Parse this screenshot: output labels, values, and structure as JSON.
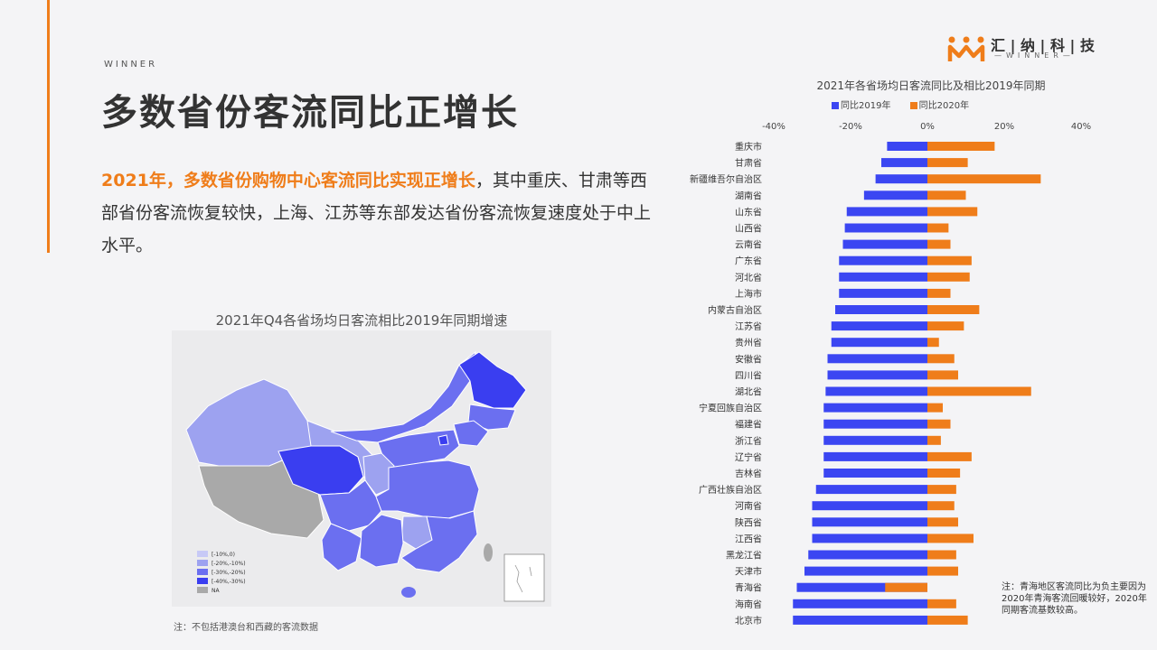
{
  "header": {
    "brand_label": "WINNER",
    "title": "多数省份客流同比正增长",
    "logo_name": "汇 | 纳 | 科 | 技",
    "logo_sub": "—WINNER—"
  },
  "body": {
    "highlight": "2021年，多数省份购物中心客流同比实现正增长",
    "rest": "，其中重庆、甘肃等西部省份客流恢复较快，上海、江苏等东部发达省份客流恢复速度处于中上水平。"
  },
  "map": {
    "title": "2021年Q4各省场均日客流相比2019年同期增速",
    "legend": [
      "[-10%,0)",
      "[-20%,-10%)",
      "[-30%,-20%)",
      "[-40%,-30%)",
      "NA"
    ],
    "colors": [
      "#c7c9f6",
      "#9da2f0",
      "#6b6ff0",
      "#3a3ef0",
      "#a9a9a9"
    ],
    "note": "注：不包括港澳台和西藏的客流数据"
  },
  "chart_data": {
    "type": "bar",
    "orientation": "horizontal",
    "title": "2021年各省场均日客流同比及相比2019年同期",
    "xlim": [
      -40,
      40
    ],
    "xticks": [
      "-40%",
      "-20%",
      "0%",
      "20%",
      "40%"
    ],
    "colors": {
      "vs2019": "#3b46f2",
      "vs2020": "#ef7d1a"
    },
    "categories": [
      "重庆市",
      "甘肃省",
      "新疆维吾尔自治区",
      "湖南省",
      "山东省",
      "山西省",
      "云南省",
      "广东省",
      "河北省",
      "上海市",
      "内蒙古自治区",
      "江苏省",
      "贵州省",
      "安徽省",
      "四川省",
      "湖北省",
      "宁夏回族自治区",
      "福建省",
      "浙江省",
      "辽宁省",
      "吉林省",
      "广西壮族自治区",
      "河南省",
      "陕西省",
      "江西省",
      "黑龙江省",
      "天津市",
      "青海省",
      "海南省",
      "北京市"
    ],
    "series": [
      {
        "name": "同比2019年",
        "values": [
          -10.5,
          -12,
          -13.5,
          -16.5,
          -21,
          -21.5,
          -22,
          -23,
          -23,
          -23,
          -24,
          -25,
          -25,
          -26,
          -26,
          -26.5,
          -27,
          -27,
          -27,
          -27,
          -27,
          -29,
          -30,
          -30,
          -30,
          -31,
          -32,
          -34,
          -35,
          -35
        ]
      },
      {
        "name": "同比2020年",
        "values": [
          17.5,
          10.5,
          29.5,
          10,
          13,
          5.5,
          6,
          11.5,
          11,
          6,
          13.5,
          9.5,
          3,
          7,
          8,
          27,
          4,
          6,
          3.5,
          11.5,
          8.5,
          7.5,
          7,
          8,
          12,
          7.5,
          8,
          -11,
          7.5,
          10.5
        ]
      }
    ],
    "note": "注：青海地区客流同比为负主要因为2020年青海客流回暖较好，2020年同期客流基数较高。"
  }
}
